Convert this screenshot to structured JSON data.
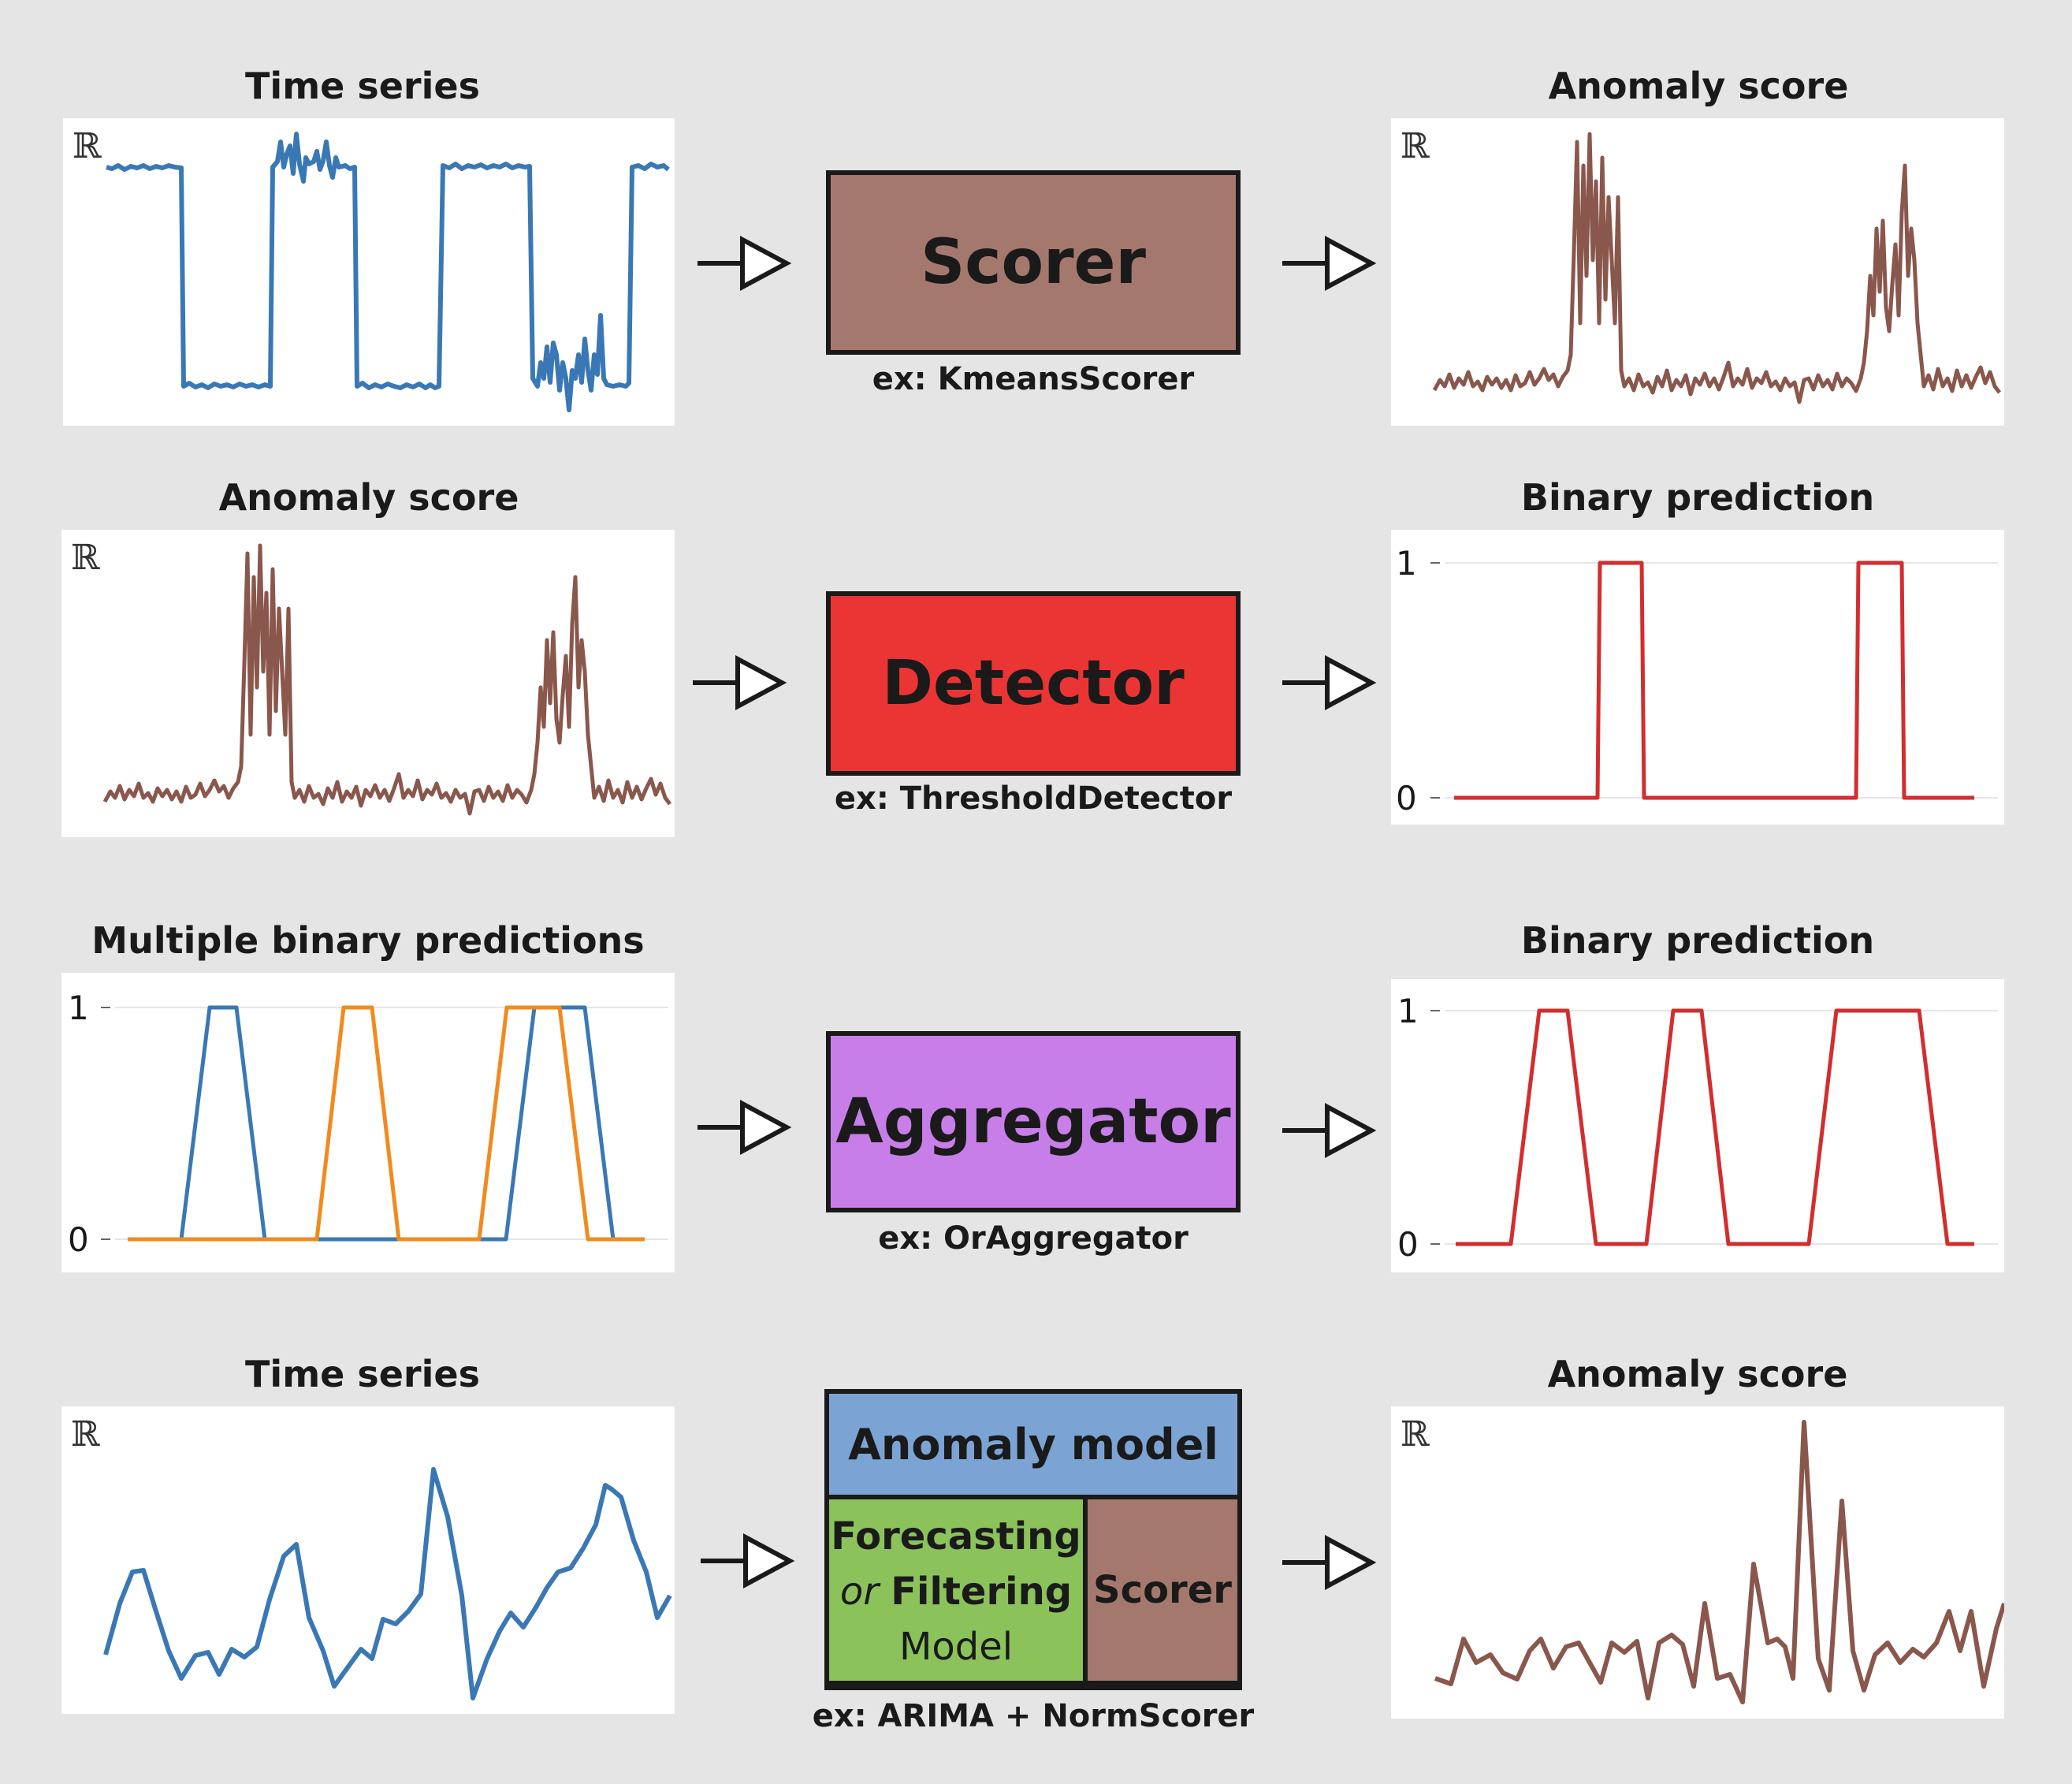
{
  "rows": [
    {
      "left_title": "Time series",
      "box_label": "Scorer",
      "caption": "ex: KmeansScorer",
      "right_title": "Anomaly score"
    },
    {
      "left_title": "Anomaly score",
      "box_label": "Detector",
      "caption": "ex: ThresholdDetector",
      "right_title": "Binary prediction"
    },
    {
      "left_title": "Multiple binary predictions",
      "box_label": "Aggregator",
      "caption": "ex: OrAggregator",
      "right_title": "Binary prediction"
    },
    {
      "left_title": "Time series",
      "box_label": "Anomaly model",
      "forecast_text": "Forecasting",
      "or_text": "or",
      "filtering_text": "Filtering",
      "model_text": "Model",
      "scorer_text": "Scorer",
      "caption": "ex: ARIMA + NormScorer",
      "right_title": "Anomaly score"
    }
  ],
  "real_symbol": "ℝ",
  "tick_one": "1",
  "tick_zero": "0",
  "colors": {
    "background": "#e5e5e5",
    "series_blue": "#3a78b5",
    "series_orange": "#f28a1e",
    "score_brown": "#8a574c",
    "binary_red": "#d22e2e",
    "scorer_box": "#a5786e",
    "detector_box": "#eb3434",
    "aggregator_box": "#c77ee8",
    "anomaly_model_box": "#7ba4d4",
    "forecasting_box": "#8bc35a"
  }
}
